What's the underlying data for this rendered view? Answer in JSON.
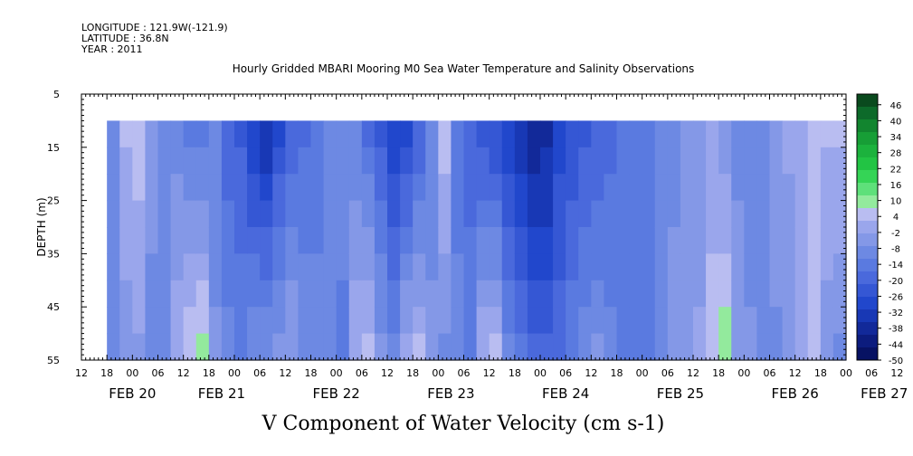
{
  "header": {
    "longitude": "LONGITUDE : 121.9W(-121.9)",
    "latitude": "LATITUDE : 36.8N",
    "year": "YEAR : 2011"
  },
  "chart_data": {
    "type": "heatmap",
    "title": "Hourly Gridded MBARI Mooring M0 Sea Water Temperature and Salinity Observations",
    "xlabel": "V Component of Water Velocity (cm s-1)",
    "ylabel": "DEPTH (m)",
    "y_range": [
      5,
      55
    ],
    "y_ticks": [
      5,
      15,
      25,
      35,
      45,
      55
    ],
    "x_range_hours": [
      0,
      180
    ],
    "x_start": "FEB 19 12:00",
    "data_start": "FEB 19 18:00",
    "data_top_depth": 10,
    "hour_ticks": [
      "12",
      "18",
      "00",
      "06",
      "12",
      "18",
      "00",
      "06",
      "12",
      "18",
      "00",
      "06",
      "12",
      "18",
      "00",
      "06",
      "12",
      "18",
      "00",
      "06",
      "12",
      "18",
      "00",
      "06",
      "12",
      "18",
      "00",
      "06",
      "12",
      "18",
      "00",
      "06",
      "12"
    ],
    "date_labels": [
      {
        "label": "FEB 20",
        "hour": 12
      },
      {
        "label": "FEB 21",
        "hour": 33
      },
      {
        "label": "FEB 22",
        "hour": 60
      },
      {
        "label": "FEB 23",
        "hour": 87
      },
      {
        "label": "FEB 24",
        "hour": 114
      },
      {
        "label": "FEB 25",
        "hour": 141
      },
      {
        "label": "FEB 26",
        "hour": 168
      },
      {
        "label": "FEB 27",
        "hour": 189
      }
    ],
    "colorbar": {
      "min": -50,
      "max": 50,
      "labels": [
        "46",
        "40",
        "34",
        "28",
        "22",
        "16",
        "10",
        "4",
        "-2",
        "-8",
        "-14",
        "-20",
        "-26",
        "-32",
        "-38",
        "-44",
        "-50"
      ],
      "colors": [
        "#0a4a1e",
        "#0d6a2a",
        "#12852f",
        "#179e36",
        "#1cb23d",
        "#22c444",
        "#35d456",
        "#5ee07a",
        "#93ea9d",
        "#b9bdf1",
        "#9aa6ec",
        "#8498e7",
        "#6d89e3",
        "#5a7ae0",
        "#4a69dc",
        "#3557d4",
        "#2147cc",
        "#1838b5",
        "#122999",
        "#0c1c7e",
        "#071263"
      ]
    },
    "velocity_profile": {
      "hours": [
        6,
        9,
        12,
        15,
        18,
        21,
        24,
        27,
        30,
        33,
        36,
        39,
        42,
        45,
        48,
        51,
        54,
        57,
        60,
        63,
        66,
        69,
        72,
        75,
        78,
        81,
        84,
        87,
        90,
        93,
        96,
        99,
        102,
        105,
        108,
        111,
        114,
        117,
        120,
        123,
        126,
        129,
        132,
        135,
        138,
        141,
        144,
        147,
        150,
        153,
        156,
        159,
        162,
        165,
        168,
        171,
        174,
        177
      ],
      "v_surface": [
        -8,
        4,
        6,
        -6,
        -12,
        -10,
        -14,
        -16,
        -12,
        -20,
        -22,
        -30,
        -36,
        -28,
        -20,
        -18,
        -14,
        -10,
        -8,
        -12,
        -18,
        -24,
        -32,
        -30,
        -22,
        -10,
        6,
        -14,
        -20,
        -24,
        -28,
        -32,
        -36,
        -40,
        -38,
        -30,
        -26,
        -24,
        -22,
        -18,
        -16,
        -14,
        -12,
        -10,
        -8,
        -6,
        -4,
        -2,
        -6,
        -10,
        -12,
        -8,
        -4,
        -2,
        2,
        4,
        4,
        4
      ],
      "v_bottom": [
        -10,
        -6,
        -4,
        -8,
        -10,
        2,
        8,
        10,
        -6,
        -10,
        -12,
        -8,
        -6,
        -4,
        -2,
        -8,
        -10,
        -12,
        -14,
        2,
        4,
        -4,
        -8,
        2,
        4,
        -6,
        -8,
        -10,
        -12,
        2,
        6,
        -10,
        -14,
        -18,
        -20,
        -16,
        -12,
        -8,
        -6,
        -10,
        -14,
        -16,
        -12,
        -8,
        -6,
        -4,
        -2,
        6,
        10,
        -2,
        -6,
        -10,
        -8,
        -4,
        2,
        6,
        -6,
        -8
      ]
    }
  }
}
